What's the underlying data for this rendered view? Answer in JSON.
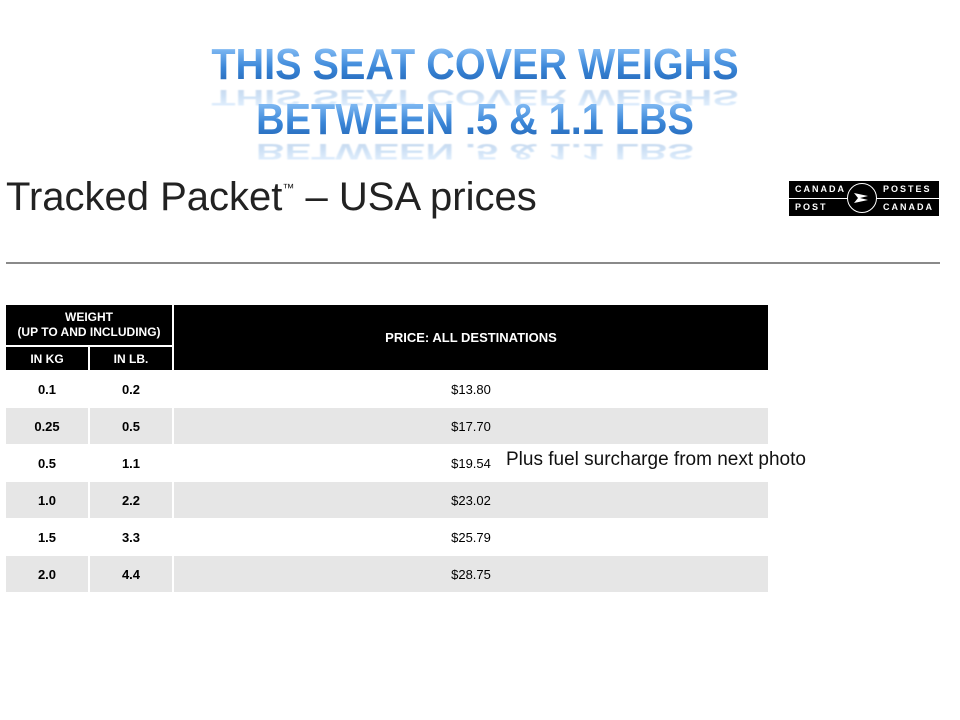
{
  "headline": {
    "line1": "THIS SEAT COVER WEIGHS",
    "line2": "BETWEEN .5 & 1.1 LBS",
    "color": "#3a86d8"
  },
  "title": {
    "text": "Tracked Packet",
    "trademark": "™",
    "suffix": " – USA prices"
  },
  "logo": {
    "top_left": "CANADA",
    "bottom_left": "POST",
    "top_right": "POSTES",
    "bottom_right": "CANADA"
  },
  "table": {
    "header_weight": "WEIGHT",
    "header_weight_sub": "(UP TO AND INCLUDING)",
    "header_kg": "IN KG",
    "header_lb": "IN LB.",
    "header_price": "PRICE: ALL DESTINATIONS",
    "rows": [
      {
        "kg": "0.1",
        "lb": "0.2",
        "price": "$13.80"
      },
      {
        "kg": "0.25",
        "lb": "0.5",
        "price": "$17.70"
      },
      {
        "kg": "0.5",
        "lb": "1.1",
        "price": "$19.54"
      },
      {
        "kg": "1.0",
        "lb": "2.2",
        "price": "$23.02"
      },
      {
        "kg": "1.5",
        "lb": "3.3",
        "price": "$25.79"
      },
      {
        "kg": "2.0",
        "lb": "4.4",
        "price": "$28.75"
      }
    ]
  },
  "note": "Plus fuel surcharge from next photo"
}
